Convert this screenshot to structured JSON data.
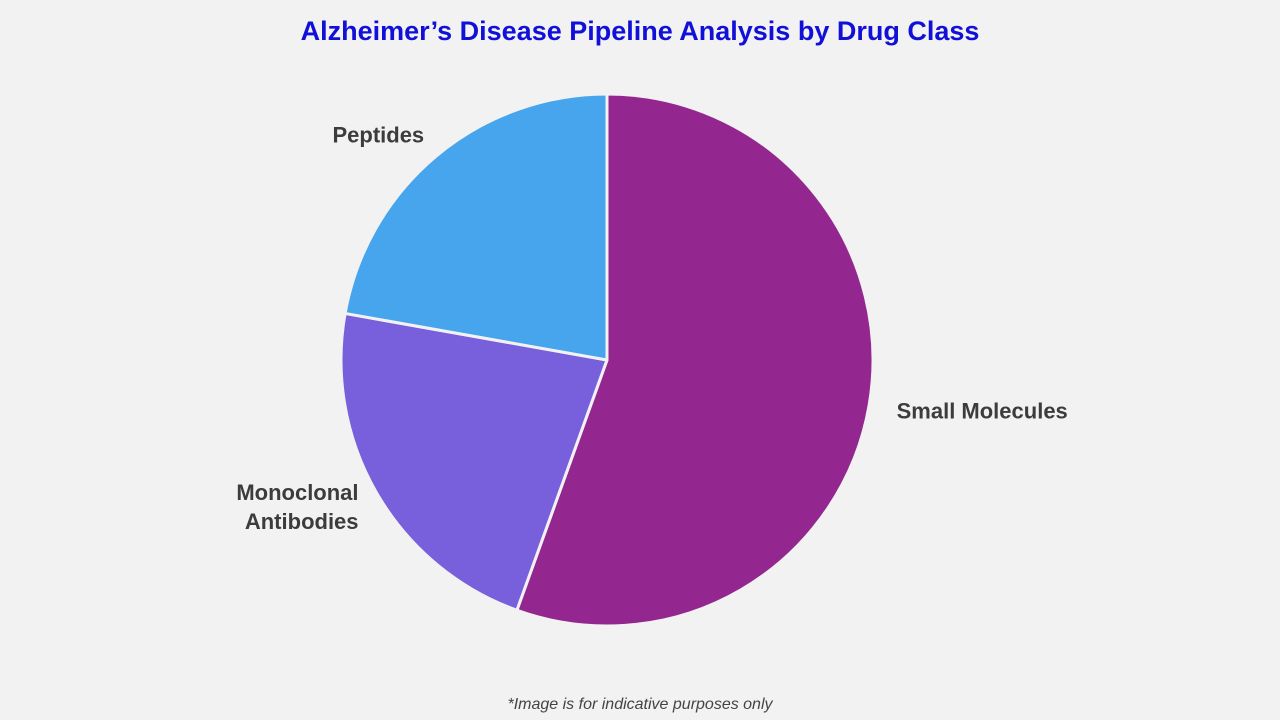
{
  "chart_data": {
    "type": "pie",
    "title": "Alzheimer’s Disease Pipeline Analysis by Drug Class",
    "categories": [
      "Small Molecules",
      "Monoclonal Antibodies",
      "Peptides"
    ],
    "values": [
      55.5,
      22.3,
      22.2
    ],
    "colors": [
      "#93278f",
      "#7860dc",
      "#46a5ec"
    ],
    "note": "*Image is for indicative purposes only"
  }
}
